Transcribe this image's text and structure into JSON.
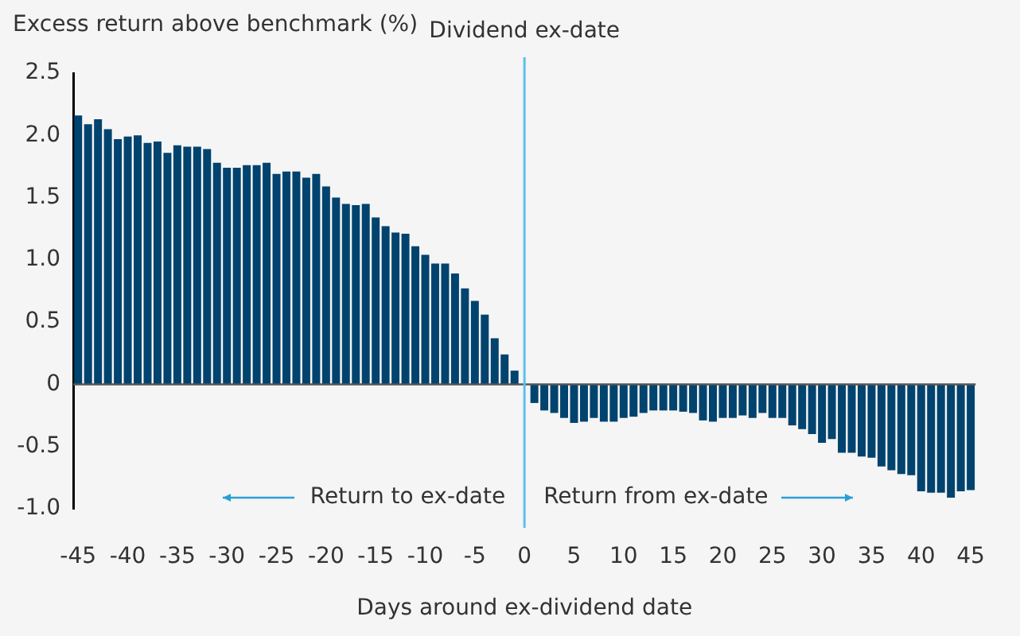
{
  "chart_data": {
    "type": "bar",
    "ylabel": "Excess return above benchmark (%)",
    "xlabel": "Days around ex-dividend date",
    "categories": [
      "-45",
      null,
      null,
      null,
      null,
      "-40",
      null,
      null,
      null,
      null,
      "-35",
      null,
      null,
      null,
      null,
      "-30",
      null,
      null,
      null,
      null,
      "-25",
      null,
      null,
      null,
      null,
      "-20",
      null,
      null,
      null,
      null,
      "-15",
      null,
      null,
      null,
      null,
      "-10",
      null,
      null,
      null,
      null,
      "-5",
      null,
      null,
      null,
      null,
      "0",
      null,
      null,
      null,
      null,
      "5",
      null,
      null,
      null,
      null,
      "10",
      null,
      null,
      null,
      null,
      "15",
      null,
      null,
      null,
      null,
      "20",
      null,
      null,
      null,
      null,
      "25",
      null,
      null,
      null,
      null,
      "30",
      null,
      null,
      null,
      null,
      "35",
      null,
      null,
      null,
      null,
      "40",
      null,
      null,
      null,
      null,
      "45"
    ],
    "values": [
      2.16,
      2.09,
      2.13,
      2.05,
      1.97,
      1.99,
      2.0,
      1.94,
      1.95,
      1.86,
      1.92,
      1.91,
      1.91,
      1.89,
      1.78,
      1.74,
      1.74,
      1.76,
      1.76,
      1.78,
      1.69,
      1.71,
      1.71,
      1.66,
      1.69,
      1.59,
      1.5,
      1.45,
      1.44,
      1.45,
      1.34,
      1.27,
      1.22,
      1.21,
      1.11,
      1.04,
      0.97,
      0.97,
      0.89,
      0.77,
      0.67,
      0.56,
      0.37,
      0.24,
      0.11,
      null,
      -0.15,
      -0.21,
      -0.23,
      -0.27,
      -0.31,
      -0.3,
      -0.27,
      -0.3,
      -0.3,
      -0.27,
      -0.26,
      -0.23,
      -0.21,
      -0.21,
      -0.21,
      -0.22,
      -0.23,
      -0.29,
      -0.3,
      -0.27,
      -0.27,
      -0.25,
      -0.27,
      -0.23,
      -0.27,
      -0.27,
      -0.33,
      -0.36,
      -0.4,
      -0.47,
      -0.44,
      -0.55,
      -0.55,
      -0.58,
      -0.59,
      -0.66,
      -0.69,
      -0.72,
      -0.73,
      -0.86,
      -0.87,
      -0.87,
      -0.91,
      -0.86,
      -0.85
    ],
    "color": "#00436e",
    "ylim": [
      -1.0,
      2.5
    ],
    "yticks": [
      {
        "value": 2.5,
        "label": "2.5"
      },
      {
        "value": 2,
        "label": "2.0"
      },
      {
        "value": 1.5,
        "label": "1.5"
      },
      {
        "value": 1,
        "label": "1.0"
      },
      {
        "value": 0.5,
        "label": "0.5"
      },
      0,
      -0.5,
      {
        "value": -1,
        "label": "-1.0"
      }
    ],
    "ref_lines": [
      {
        "axis": "x",
        "value": "0",
        "label": "Dividend ex-date",
        "color": "#5bc0eb"
      }
    ],
    "annotations": [
      "Return to ex-date",
      "Return from ex-date"
    ],
    "grid": false,
    "legend": false
  }
}
